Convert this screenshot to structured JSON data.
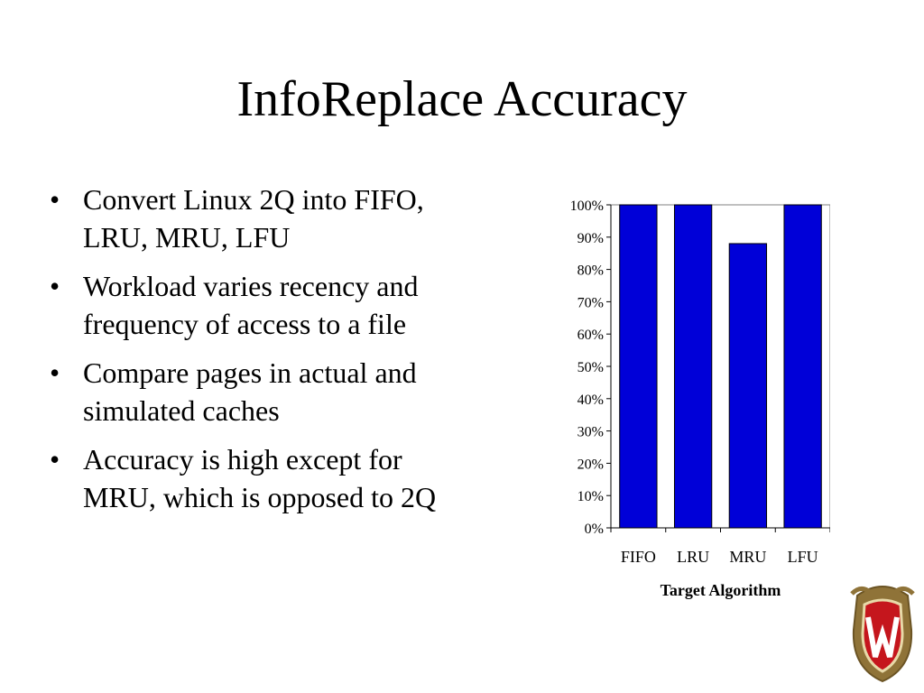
{
  "slide": {
    "title": "InfoReplace Accuracy",
    "bullets": [
      "Convert Linux 2Q into FIFO, LRU, MRU, LFU",
      "Workload varies recency and frequency of access to a file",
      "Compare pages in actual and simulated caches",
      "Accuracy is high except for MRU, which is opposed to 2Q"
    ],
    "bullet_symbol": "•"
  },
  "colors": {
    "bar_fill": "#0000d8",
    "crest_red": "#c5161d",
    "crest_gold": "#a88a48"
  },
  "chart_data": {
    "type": "bar",
    "categories": [
      "FIFO",
      "LRU",
      "MRU",
      "LFU"
    ],
    "values": [
      100,
      100,
      88,
      100
    ],
    "title": "",
    "xlabel": "Target Algorithm",
    "ylabel": "",
    "ylim": [
      0,
      100
    ],
    "yticks": [
      "0%",
      "10%",
      "20%",
      "30%",
      "40%",
      "50%",
      "60%",
      "70%",
      "80%",
      "90%",
      "100%"
    ],
    "grid": false,
    "legend": "none"
  }
}
